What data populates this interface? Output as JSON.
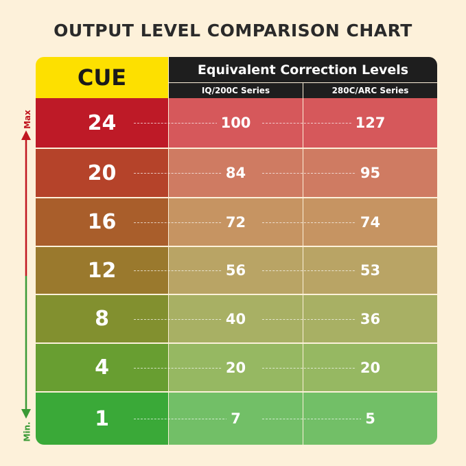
{
  "title": "OUTPUT LEVEL COMPARISON CHART",
  "chart_data": {
    "type": "table",
    "title": "OUTPUT LEVEL COMPARISON CHART",
    "columns": [
      "CUE",
      "IQ/200C Series",
      "280C/ARC Series"
    ],
    "group_header": "Equivalent Correction Levels",
    "rows": [
      {
        "cue": "24",
        "iq": "100",
        "arc": "127",
        "color": "#be1a27",
        "light": "#d6585b"
      },
      {
        "cue": "20",
        "iq": "84",
        "arc": "95",
        "color": "#b5432a",
        "light": "#cf7b62"
      },
      {
        "cue": "16",
        "iq": "72",
        "arc": "74",
        "color": "#a95e2b",
        "light": "#c69462"
      },
      {
        "cue": "12",
        "iq": "56",
        "arc": "53",
        "color": "#9a792d",
        "light": "#b9a465"
      },
      {
        "cue": "8",
        "iq": "40",
        "arc": "36",
        "color": "#82902f",
        "light": "#a8b064"
      },
      {
        "cue": "4",
        "iq": "20",
        "arc": "20",
        "color": "#689e31",
        "light": "#96b862"
      },
      {
        "cue": "1",
        "iq": "7",
        "arc": "5",
        "color": "#3aa938",
        "light": "#72bf67"
      }
    ],
    "scale": {
      "max_label": "Max",
      "min_label": "Min.",
      "max_color": "#c0161f",
      "min_color": "#3a9a36"
    }
  }
}
